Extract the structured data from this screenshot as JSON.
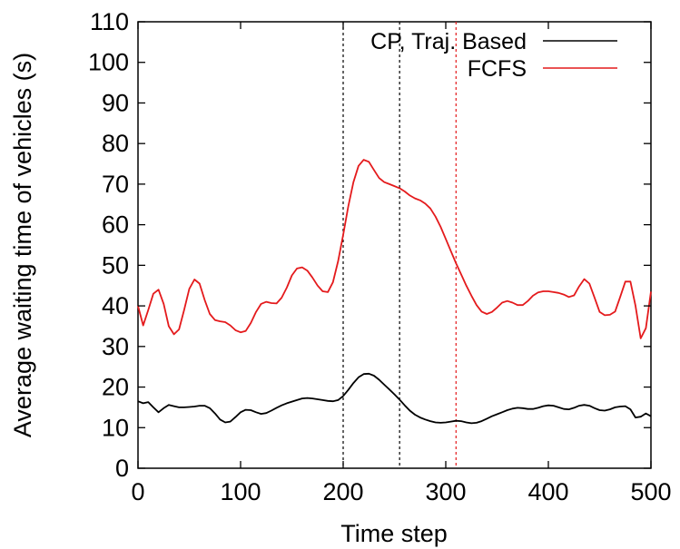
{
  "chart_data": {
    "type": "line",
    "title": "",
    "xlabel": "Time step",
    "ylabel": "Average waiting time of vehicles (s)",
    "xlim": [
      0,
      500
    ],
    "ylim": [
      0,
      110
    ],
    "xticks": [
      0,
      100,
      200,
      300,
      400,
      500
    ],
    "yticks": [
      0,
      10,
      20,
      30,
      40,
      50,
      60,
      70,
      80,
      90,
      100,
      110
    ],
    "grid": false,
    "legend_position": "top-right",
    "series": [
      {
        "name": "CP, Traj. Based",
        "color": "#000000",
        "x": [
          0,
          5,
          10,
          15,
          20,
          25,
          30,
          35,
          40,
          45,
          50,
          55,
          60,
          65,
          70,
          75,
          80,
          85,
          90,
          95,
          100,
          105,
          110,
          115,
          120,
          125,
          130,
          135,
          140,
          145,
          150,
          155,
          160,
          165,
          170,
          175,
          180,
          185,
          190,
          195,
          200,
          205,
          210,
          215,
          220,
          225,
          230,
          235,
          240,
          245,
          250,
          255,
          260,
          265,
          270,
          275,
          280,
          285,
          290,
          295,
          300,
          305,
          310,
          315,
          320,
          325,
          330,
          335,
          340,
          345,
          350,
          355,
          360,
          365,
          370,
          375,
          380,
          385,
          390,
          395,
          400,
          405,
          410,
          415,
          420,
          425,
          430,
          435,
          440,
          445,
          450,
          455,
          460,
          465,
          470,
          475,
          480,
          485,
          490,
          495,
          500
        ],
        "y": [
          16.5,
          16.0,
          16.3,
          15.0,
          13.8,
          14.8,
          15.6,
          15.3,
          15.0,
          15.0,
          15.1,
          15.2,
          15.4,
          15.4,
          14.8,
          13.5,
          12.0,
          11.3,
          11.5,
          12.6,
          13.8,
          14.4,
          14.3,
          13.8,
          13.4,
          13.6,
          14.2,
          14.9,
          15.5,
          16.0,
          16.4,
          16.8,
          17.2,
          17.3,
          17.2,
          17.0,
          16.8,
          16.6,
          16.5,
          16.8,
          17.8,
          19.3,
          21.0,
          22.4,
          23.2,
          23.3,
          22.8,
          21.8,
          20.6,
          19.4,
          18.2,
          16.9,
          15.5,
          14.2,
          13.2,
          12.5,
          12.0,
          11.6,
          11.3,
          11.2,
          11.3,
          11.5,
          11.7,
          11.6,
          11.3,
          11.1,
          11.2,
          11.6,
          12.2,
          12.8,
          13.3,
          13.8,
          14.3,
          14.7,
          14.9,
          14.8,
          14.6,
          14.6,
          14.9,
          15.3,
          15.5,
          15.4,
          15.0,
          14.6,
          14.5,
          14.9,
          15.4,
          15.6,
          15.4,
          14.8,
          14.3,
          14.2,
          14.5,
          15.0,
          15.2,
          15.3,
          14.5,
          12.5,
          12.7,
          13.5,
          12.8
        ]
      },
      {
        "name": "FCFS",
        "color": "#e41a1c",
        "x": [
          0,
          5,
          10,
          15,
          20,
          25,
          30,
          35,
          40,
          45,
          50,
          55,
          60,
          65,
          70,
          75,
          80,
          85,
          90,
          95,
          100,
          105,
          110,
          115,
          120,
          125,
          130,
          135,
          140,
          145,
          150,
          155,
          160,
          165,
          170,
          175,
          180,
          185,
          190,
          195,
          200,
          205,
          210,
          215,
          220,
          225,
          230,
          235,
          240,
          245,
          250,
          255,
          260,
          265,
          270,
          275,
          280,
          285,
          290,
          295,
          300,
          305,
          310,
          315,
          320,
          325,
          330,
          335,
          340,
          345,
          350,
          355,
          360,
          365,
          370,
          375,
          380,
          385,
          390,
          395,
          400,
          405,
          410,
          415,
          420,
          425,
          430,
          435,
          440,
          445,
          450,
          455,
          460,
          465,
          470,
          475,
          480,
          485,
          490,
          495,
          500
        ],
        "y": [
          40.0,
          35.2,
          39.0,
          43.0,
          44.0,
          40.5,
          35.0,
          33.0,
          34.2,
          39.0,
          44.2,
          46.5,
          45.5,
          41.5,
          38.0,
          36.5,
          36.2,
          36.0,
          35.2,
          34.0,
          33.5,
          33.8,
          35.8,
          38.5,
          40.5,
          41.0,
          40.7,
          40.6,
          42.0,
          44.5,
          47.5,
          49.2,
          49.5,
          48.7,
          47.0,
          45.0,
          43.6,
          43.4,
          45.8,
          51.0,
          57.5,
          64.5,
          70.5,
          74.5,
          76.0,
          75.5,
          73.5,
          71.5,
          70.5,
          70.0,
          69.5,
          69.0,
          68.2,
          67.2,
          66.5,
          66.0,
          65.2,
          64.0,
          62.0,
          59.5,
          56.5,
          53.5,
          50.5,
          47.8,
          45.0,
          42.5,
          40.2,
          38.6,
          38.0,
          38.5,
          39.6,
          40.8,
          41.2,
          40.8,
          40.2,
          40.2,
          41.2,
          42.5,
          43.3,
          43.6,
          43.6,
          43.4,
          43.2,
          42.8,
          42.2,
          42.6,
          44.8,
          46.6,
          45.5,
          42.0,
          38.5,
          37.7,
          37.8,
          38.6,
          42.2,
          46.0,
          46.0,
          40.0,
          32.0,
          34.5,
          43.5
        ]
      }
    ],
    "vertical_markers": [
      {
        "x": 200,
        "color": "#000000"
      },
      {
        "x": 255,
        "color": "#000000"
      },
      {
        "x": 310,
        "color": "#e41a1c"
      }
    ]
  }
}
